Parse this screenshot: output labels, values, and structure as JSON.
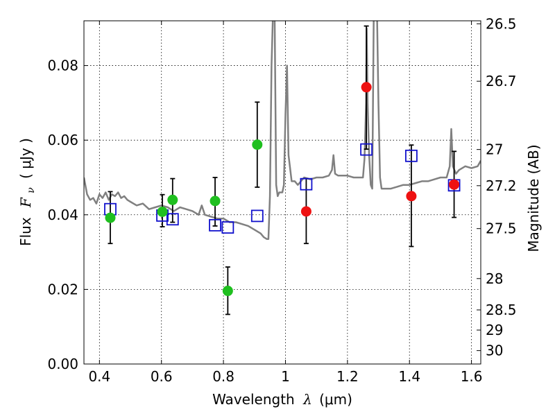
{
  "chart_data": {
    "type": "scatter",
    "xlabel_prefix": "Wavelength",
    "xlabel_symbol": "λ",
    "xlabel_unit": "(μm)",
    "ylabel_left_prefix": "Flux",
    "ylabel_left_symbol": "F",
    "ylabel_left_sub": "ν",
    "ylabel_left_unit": "( μJy )",
    "ylabel_right": "Magnitude (AB)",
    "xlim": [
      0.35,
      1.63
    ],
    "ylim": [
      0.0,
      0.092
    ],
    "x_ticks": [
      0.4,
      0.6,
      0.8,
      1.0,
      1.2,
      1.4,
      1.6
    ],
    "x_tick_labels": [
      "0.4",
      "0.6",
      "0.8",
      "1",
      "1.2",
      "1.4",
      "1.6"
    ],
    "y_ticks": [
      0.0,
      0.02,
      0.04,
      0.06,
      0.08
    ],
    "y_tick_labels": [
      "0.00",
      "0.02",
      "0.04",
      "0.06",
      "0.08"
    ],
    "right_ticks": [
      {
        "label": "26.5",
        "flux": 0.0912
      },
      {
        "label": "26.7",
        "flux": 0.0758
      },
      {
        "label": "27",
        "flux": 0.0575
      },
      {
        "label": "27.2",
        "flux": 0.0478
      },
      {
        "label": "27.5",
        "flux": 0.0363
      },
      {
        "label": "28",
        "flux": 0.0229
      },
      {
        "label": "28.5",
        "flux": 0.0145
      },
      {
        "label": "29",
        "flux": 0.0091
      },
      {
        "label": "30",
        "flux": 0.0036
      }
    ],
    "grid": true,
    "colors": {
      "green": "#1fbf1f",
      "red": "#ee1111",
      "blue": "#1010cc",
      "template": "#808080",
      "error": "#000000"
    },
    "series": [
      {
        "name": "green-detections",
        "marker": "circle",
        "points": [
          {
            "x": 0.435,
            "y": 0.0392,
            "lo": 0.0323,
            "hi": 0.0462
          },
          {
            "x": 0.603,
            "y": 0.0408,
            "lo": 0.0368,
            "hi": 0.0454
          },
          {
            "x": 0.636,
            "y": 0.044,
            "lo": 0.038,
            "hi": 0.0497
          },
          {
            "x": 0.773,
            "y": 0.0437,
            "lo": 0.037,
            "hi": 0.05
          },
          {
            "x": 0.814,
            "y": 0.0196,
            "lo": 0.0133,
            "hi": 0.026
          },
          {
            "x": 0.909,
            "y": 0.0588,
            "lo": 0.0474,
            "hi": 0.0702
          }
        ]
      },
      {
        "name": "red-detections",
        "marker": "circle",
        "points": [
          {
            "x": 1.067,
            "y": 0.0409,
            "lo": 0.0323,
            "hi": 0.0497
          },
          {
            "x": 1.261,
            "y": 0.0742,
            "lo": 0.0576,
            "hi": 0.0906
          },
          {
            "x": 1.406,
            "y": 0.045,
            "lo": 0.0315,
            "hi": 0.0587
          },
          {
            "x": 1.544,
            "y": 0.0481,
            "lo": 0.0393,
            "hi": 0.057
          }
        ]
      },
      {
        "name": "model-photometry",
        "marker": "open-square",
        "points": [
          {
            "x": 0.435,
            "y": 0.0415
          },
          {
            "x": 0.603,
            "y": 0.0398
          },
          {
            "x": 0.636,
            "y": 0.0388
          },
          {
            "x": 0.773,
            "y": 0.0372
          },
          {
            "x": 0.814,
            "y": 0.0366
          },
          {
            "x": 0.909,
            "y": 0.0397
          },
          {
            "x": 1.067,
            "y": 0.0482
          },
          {
            "x": 1.261,
            "y": 0.0575
          },
          {
            "x": 1.406,
            "y": 0.0558
          },
          {
            "x": 1.544,
            "y": 0.0479
          }
        ]
      },
      {
        "name": "template-spectrum",
        "type": "line",
        "x": [
          0.35,
          0.36,
          0.37,
          0.38,
          0.39,
          0.4,
          0.41,
          0.42,
          0.43,
          0.44,
          0.45,
          0.46,
          0.47,
          0.48,
          0.49,
          0.5,
          0.52,
          0.54,
          0.56,
          0.58,
          0.6,
          0.62,
          0.64,
          0.66,
          0.68,
          0.7,
          0.72,
          0.73,
          0.74,
          0.76,
          0.78,
          0.8,
          0.82,
          0.84,
          0.86,
          0.88,
          0.9,
          0.92,
          0.93,
          0.94,
          0.945,
          0.95,
          0.955,
          0.96,
          0.965,
          0.97,
          0.975,
          0.98,
          0.99,
          0.995,
          1.0,
          1.005,
          1.01,
          1.02,
          1.03,
          1.04,
          1.05,
          1.06,
          1.08,
          1.1,
          1.12,
          1.14,
          1.15,
          1.155,
          1.16,
          1.17,
          1.18,
          1.2,
          1.22,
          1.24,
          1.25,
          1.255,
          1.26,
          1.262,
          1.265,
          1.27,
          1.275,
          1.28,
          1.285,
          1.29,
          1.295,
          1.3,
          1.305,
          1.31,
          1.32,
          1.34,
          1.36,
          1.38,
          1.4,
          1.42,
          1.44,
          1.46,
          1.48,
          1.5,
          1.52,
          1.53,
          1.535,
          1.54,
          1.545,
          1.55,
          1.56,
          1.58,
          1.6,
          1.62,
          1.63
        ],
        "y": [
          0.05,
          0.0455,
          0.044,
          0.0445,
          0.043,
          0.0455,
          0.0445,
          0.046,
          0.044,
          0.0455,
          0.045,
          0.046,
          0.0445,
          0.045,
          0.044,
          0.0435,
          0.0425,
          0.043,
          0.0415,
          0.042,
          0.0425,
          0.042,
          0.041,
          0.042,
          0.0415,
          0.041,
          0.04,
          0.0425,
          0.04,
          0.0395,
          0.039,
          0.039,
          0.038,
          0.038,
          0.0375,
          0.037,
          0.036,
          0.035,
          0.034,
          0.0335,
          0.0335,
          0.045,
          0.08,
          0.095,
          0.095,
          0.048,
          0.045,
          0.046,
          0.046,
          0.048,
          0.067,
          0.08,
          0.056,
          0.049,
          0.049,
          0.048,
          0.049,
          0.05,
          0.0495,
          0.05,
          0.05,
          0.0505,
          0.052,
          0.056,
          0.051,
          0.0505,
          0.0505,
          0.0505,
          0.05,
          0.05,
          0.05,
          0.055,
          0.07,
          0.09,
          0.07,
          0.056,
          0.048,
          0.047,
          0.095,
          0.095,
          0.096,
          0.07,
          0.05,
          0.047,
          0.047,
          0.047,
          0.0475,
          0.048,
          0.048,
          0.0485,
          0.049,
          0.049,
          0.0495,
          0.05,
          0.05,
          0.053,
          0.063,
          0.053,
          0.052,
          0.051,
          0.052,
          0.053,
          0.0525,
          0.053,
          0.0545
        ]
      }
    ]
  }
}
